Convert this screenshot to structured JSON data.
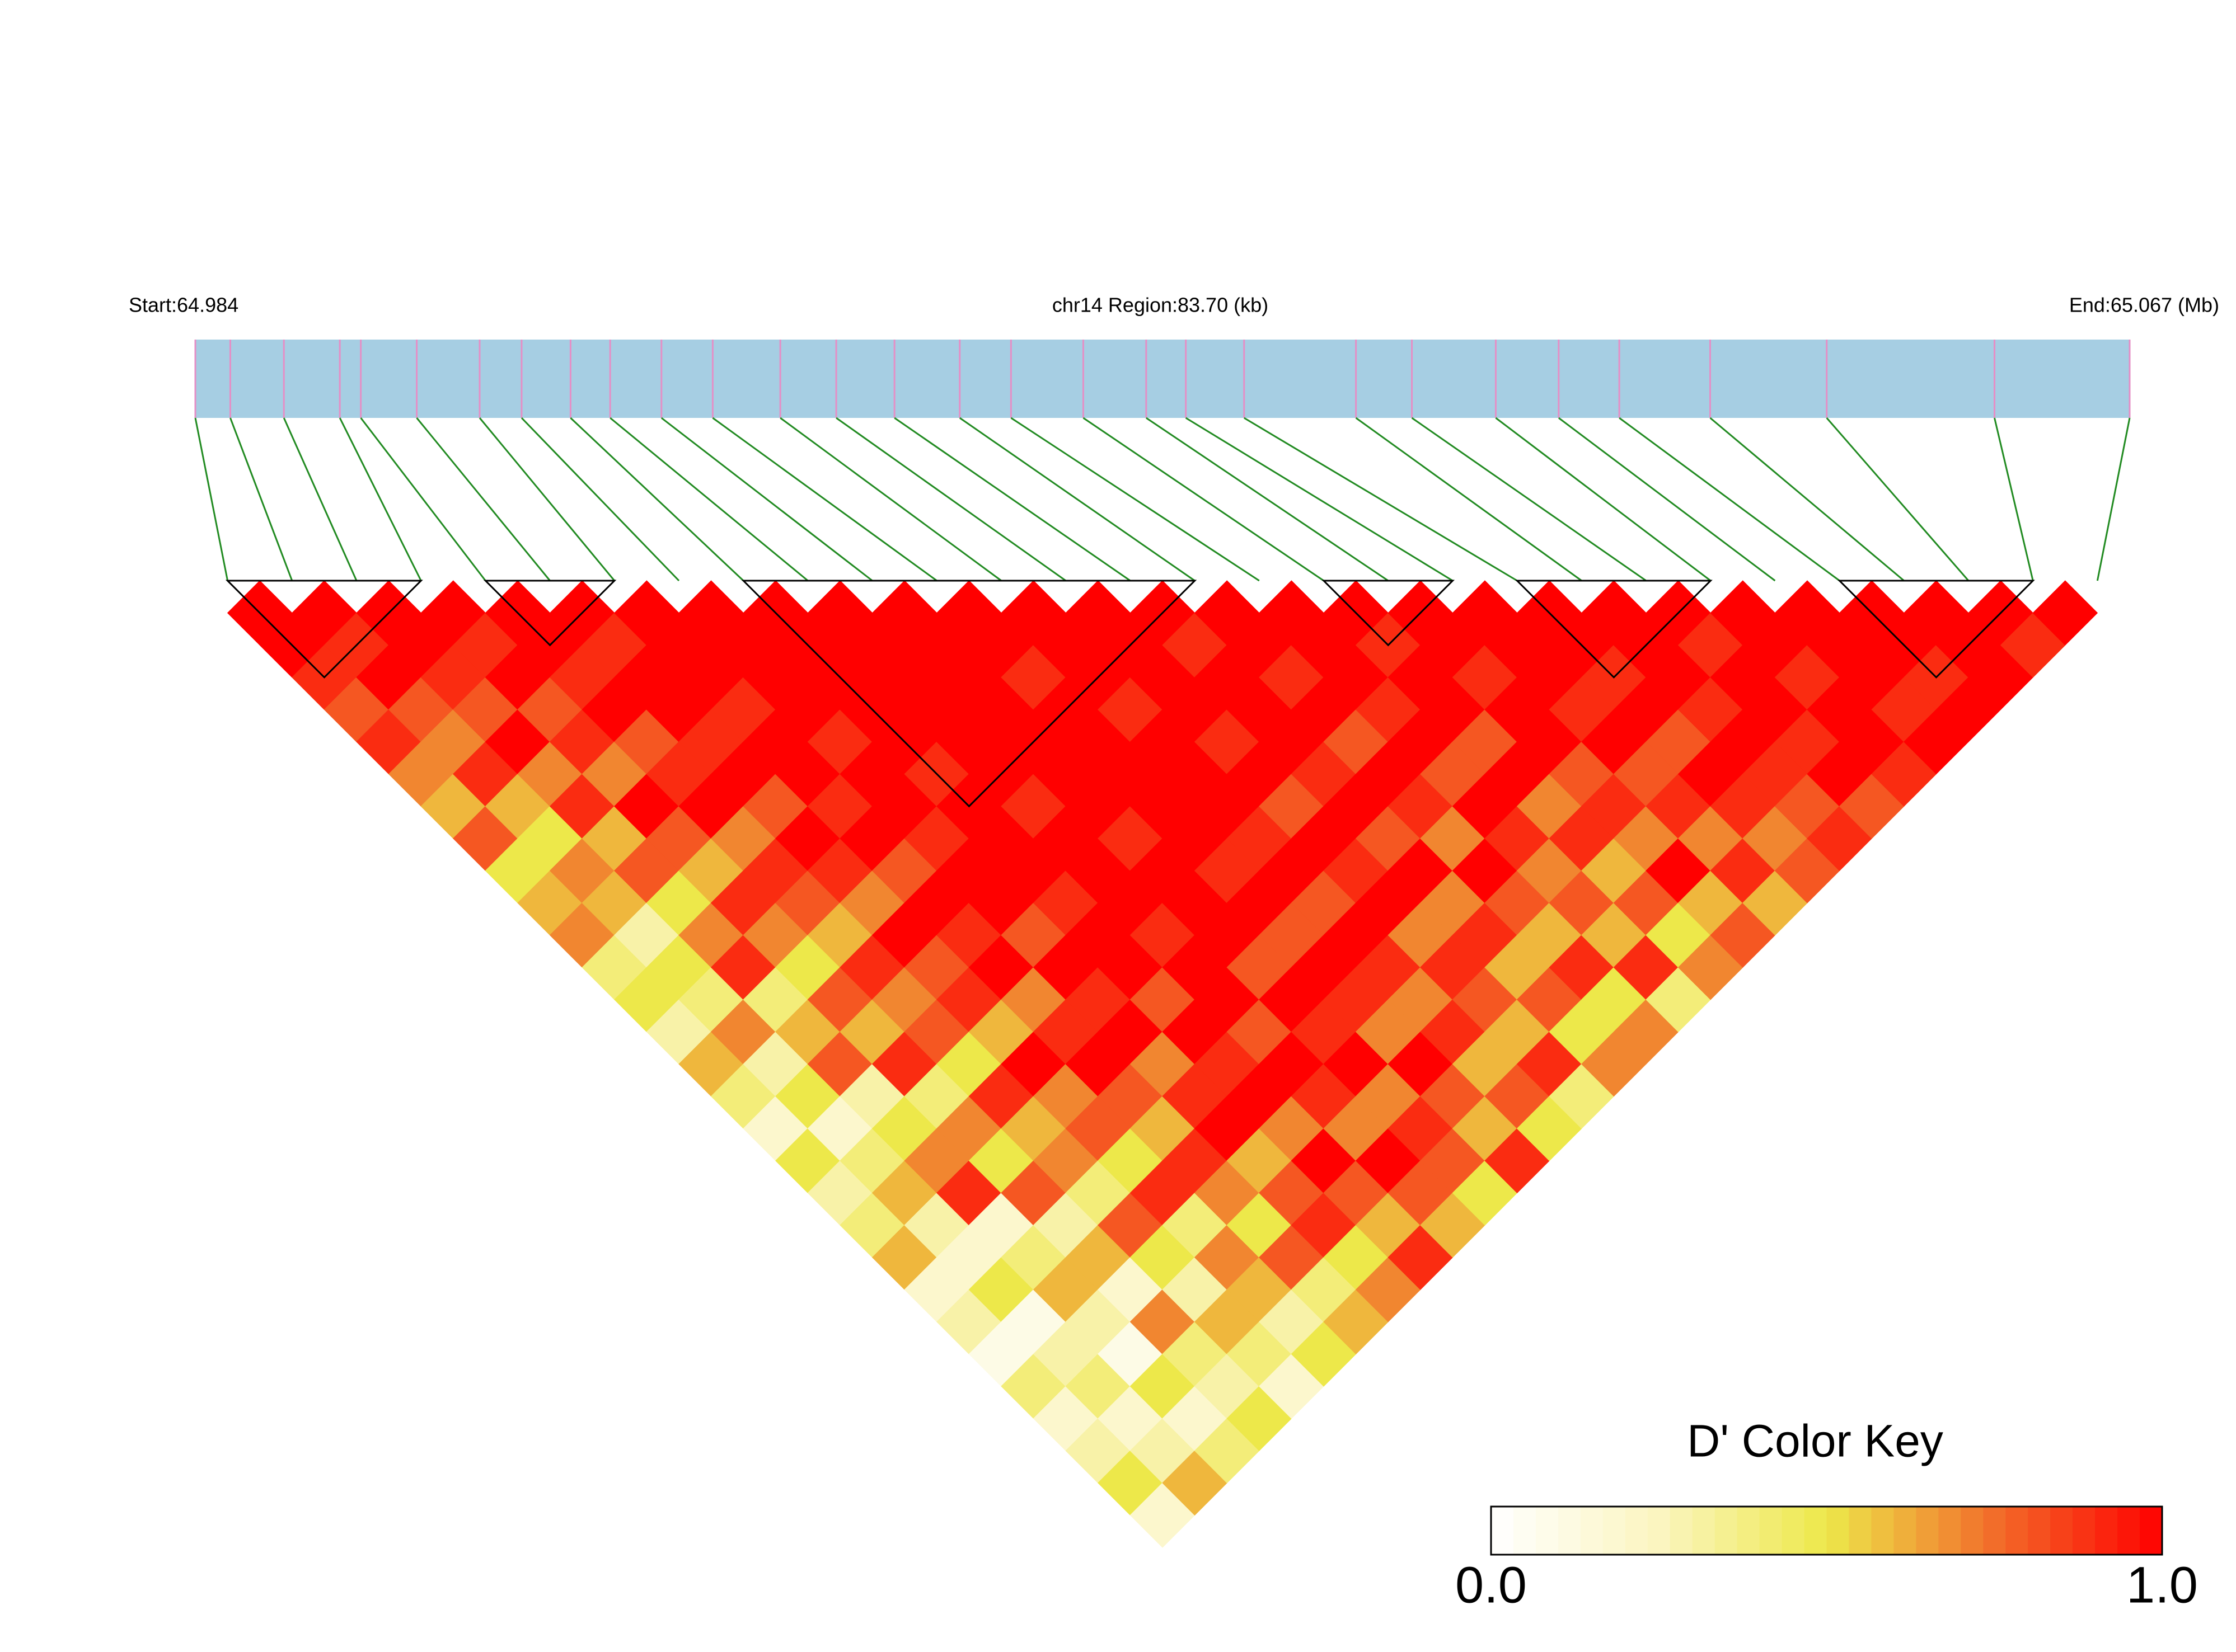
{
  "chart_data": {
    "type": "ld-heatmap",
    "start_label": "Start:64.984",
    "region_label": "chr14 Region:83.70 (kb)",
    "end_label": "End:65.067 (Mb)",
    "xlim": [
      64.984,
      65.067
    ],
    "positions": [
      64.984,
      64.9855,
      64.9878,
      64.9902,
      64.9911,
      64.9935,
      64.9962,
      64.998,
      65.0001,
      65.0018,
      65.004,
      65.0062,
      65.0091,
      65.0115,
      65.014,
      65.0168,
      65.019,
      65.0221,
      65.0248,
      65.0265,
      65.029,
      65.0338,
      65.0362,
      65.0398,
      65.0425,
      65.0451,
      65.049,
      65.054,
      65.0612,
      65.067
    ],
    "bar_color": "#a6cee3",
    "snp_line_color": "#e58fc6",
    "connector_color": "#228b22",
    "block_color": "#000000",
    "colors": [
      "#ffffff",
      "#fbf5c0",
      "#ede84a",
      "#f26d2a",
      "#ff0000"
    ],
    "values": [
      [
        1,
        1,
        0.9,
        0.8,
        0.9,
        0.7,
        0.6,
        0.8,
        0.5,
        0.6,
        0.7,
        0.4,
        0.5,
        0.3,
        0.6,
        0.4,
        0.2,
        0.5,
        0.3,
        0.4,
        0.6,
        0.2,
        0.3,
        0.1,
        0.4,
        0.2,
        0.3,
        0.5,
        0.2
      ],
      [
        1,
        0.9,
        1,
        0.8,
        0.7,
        0.9,
        0.6,
        0.5,
        0.7,
        0.6,
        0.3,
        0.5,
        0.4,
        0.7,
        0.3,
        0.5,
        0.2,
        0.4,
        0.6,
        0.3,
        0.2,
        0.5,
        0.1,
        0.3,
        0.4,
        0.2,
        0.3,
        0.6
      ],
      [
        1,
        1,
        0.9,
        0.8,
        1,
        0.7,
        0.9,
        0.6,
        0.8,
        0.5,
        0.7,
        0.9,
        0.4,
        0.6,
        0.8,
        0.3,
        0.5,
        0.7,
        0.9,
        0.2,
        0.4,
        0.6,
        0.3,
        0.1,
        0.5,
        0.2,
        0.4
      ],
      [
        1,
        0.9,
        1,
        0.8,
        0.9,
        0.7,
        1,
        0.8,
        0.6,
        0.9,
        0.7,
        0.5,
        0.8,
        0.6,
        0.9,
        0.4,
        0.7,
        0.5,
        0.8,
        0.3,
        0.6,
        0.2,
        0.7,
        0.4,
        0.3,
        0.5
      ],
      [
        1,
        1,
        0.9,
        1,
        0.8,
        0.9,
        1,
        0.7,
        0.9,
        0.8,
        0.6,
        0.9,
        0.7,
        0.8,
        0.5,
        0.9,
        0.6,
        0.7,
        0.4,
        0.8,
        0.5,
        0.3,
        0.6,
        0.4,
        0.2
      ],
      [
        1,
        0.9,
        1,
        1,
        0.9,
        1,
        0.8,
        1,
        0.9,
        0.7,
        1,
        0.8,
        0.9,
        0.6,
        1,
        0.7,
        0.8,
        0.5,
        0.9,
        0.4,
        0.7,
        0.6,
        0.3,
        0.5
      ],
      [
        1,
        1,
        1,
        0.9,
        1,
        1,
        0.9,
        1,
        0.8,
        1,
        0.9,
        1,
        0.7,
        0.9,
        1,
        0.8,
        0.6,
        0.9,
        0.7,
        0.5,
        0.8,
        0.4,
        0.6
      ],
      [
        1,
        1,
        1,
        1,
        0.9,
        1,
        1,
        0.9,
        1,
        1,
        0.8,
        1,
        0.9,
        1,
        0.7,
        0.9,
        1,
        0.6,
        0.8,
        0.9,
        0.5,
        0.7
      ],
      [
        1,
        1,
        1,
        1,
        1,
        0.9,
        1,
        1,
        1,
        0.9,
        1,
        1,
        0.8,
        1,
        0.9,
        1,
        0.7,
        1,
        0.8,
        0.6,
        0.9
      ],
      [
        1,
        1,
        1,
        1,
        1,
        1,
        0.9,
        1,
        1,
        1,
        0.9,
        1,
        1,
        0.8,
        1,
        0.9,
        0.7,
        1,
        0.8,
        0.6
      ],
      [
        1,
        1,
        1,
        1,
        1,
        1,
        1,
        0.9,
        1,
        1,
        1,
        0.8,
        1,
        0.9,
        1,
        0.7,
        0.9,
        0.8,
        0.5
      ],
      [
        1,
        1,
        0.9,
        1,
        1,
        1,
        1,
        1,
        0.9,
        1,
        0.8,
        1,
        0.9,
        0.7,
        1,
        0.8,
        0.6,
        0.9
      ],
      [
        1,
        1,
        1,
        0.9,
        1,
        1,
        1,
        0.9,
        1,
        0.8,
        1,
        0.9,
        0.7,
        0.9,
        0.6,
        0.8,
        0.5
      ],
      [
        1,
        1,
        1,
        1,
        0.9,
        1,
        0.8,
        1,
        0.9,
        1,
        0.7,
        0.9,
        0.8,
        0.6,
        0.9,
        0.4
      ],
      [
        1,
        0.9,
        1,
        1,
        1,
        0.9,
        1,
        0.8,
        1,
        0.7,
        0.9,
        0.6,
        0.8,
        0.5,
        0.7
      ],
      [
        1,
        1,
        0.9,
        1,
        0.8,
        1,
        0.9,
        0.7,
        1,
        0.8,
        0.6,
        0.9,
        0.5,
        0.7
      ],
      [
        1,
        1,
        1,
        0.9,
        1,
        0.8,
        1,
        0.9,
        0.7,
        0.8,
        0.6,
        0.9,
        0.4
      ],
      [
        1,
        0.9,
        1,
        1,
        0.8,
        1,
        0.7,
        0.9,
        0.6,
        0.8,
        0.5,
        0.7
      ],
      [
        1,
        1,
        0.9,
        1,
        1,
        0.8,
        0.9,
        0.7,
        1,
        0.6,
        0.8
      ],
      [
        1,
        1,
        1,
        0.9,
        1,
        0.8,
        0.9,
        0.7,
        0.9,
        0.6
      ],
      [
        1,
        1,
        0.9,
        1,
        0.8,
        1,
        0.9,
        0.7,
        0.8
      ],
      [
        1,
        1,
        1,
        0.9,
        1,
        0.9,
        0.8,
        0.9
      ],
      [
        1,
        0.9,
        1,
        1,
        0.9,
        1,
        0.8
      ],
      [
        1,
        1,
        0.9,
        1,
        1,
        0.9
      ],
      [
        1,
        1,
        1,
        0.9,
        1
      ],
      [
        1,
        1,
        0.9,
        1
      ],
      [
        1,
        1,
        1
      ],
      [
        1,
        0.9
      ],
      [
        1
      ]
    ],
    "blocks": [
      [
        0,
        3
      ],
      [
        4,
        6
      ],
      [
        8,
        15
      ],
      [
        17,
        19
      ],
      [
        20,
        23
      ],
      [
        25,
        28
      ]
    ],
    "color_key": {
      "title": "D' Color Key",
      "lim": [
        0,
        1
      ],
      "ticks": [
        {
          "value": 0,
          "label": "0.0"
        },
        {
          "value": 1,
          "label": "1.0"
        }
      ]
    }
  }
}
